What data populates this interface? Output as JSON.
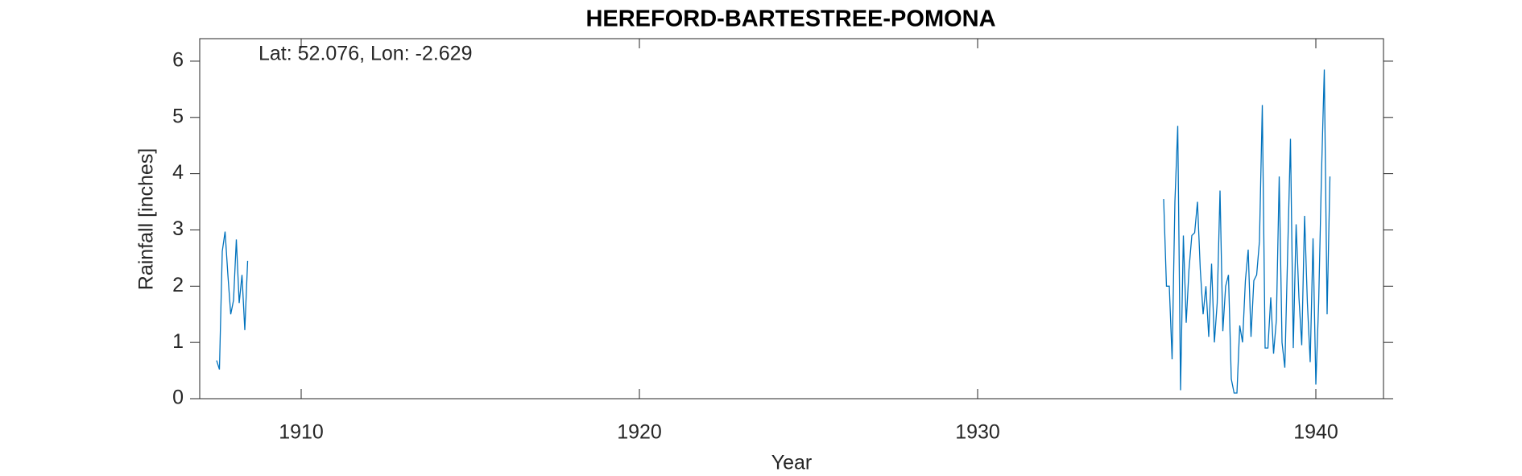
{
  "chart_data": {
    "type": "line",
    "title": "HEREFORD-BARTESTREE-POMONA",
    "annotation": "Lat: 52.076, Lon: -2.629",
    "xlabel": "Year",
    "ylabel": "Rainfall [inches]",
    "xlim": [
      1907,
      1942
    ],
    "xticks": [
      1910,
      1920,
      1930,
      1940
    ],
    "ylim": [
      0,
      6.4
    ],
    "yticks": [
      0,
      1,
      2,
      3,
      4,
      5,
      6
    ],
    "x": [
      1907.5,
      1907.583,
      1907.667,
      1907.75,
      1907.833,
      1907.917,
      1908,
      1908.083,
      1908.167,
      1908.25,
      1908.333,
      1908.417,
      1908.5,
      1935.5,
      1935.583,
      1935.667,
      1935.75,
      1935.833,
      1935.917,
      1936,
      1936.083,
      1936.167,
      1936.25,
      1936.333,
      1936.417,
      1936.5,
      1936.583,
      1936.667,
      1936.75,
      1936.833,
      1936.917,
      1937,
      1937.083,
      1937.167,
      1937.25,
      1937.333,
      1937.417,
      1937.5,
      1937.583,
      1937.667,
      1937.75,
      1937.833,
      1937.917,
      1938,
      1938.083,
      1938.167,
      1938.25,
      1938.333,
      1938.417,
      1938.5,
      1938.583,
      1938.667,
      1938.75,
      1938.833,
      1938.917,
      1939,
      1939.083,
      1939.167,
      1939.25,
      1939.333,
      1939.417,
      1939.5,
      1939.583,
      1939.667,
      1939.75,
      1939.833,
      1939.917,
      1940,
      1940.083,
      1940.167,
      1940.25,
      1940.333,
      1940.417
    ],
    "series": [
      {
        "color": "#0072bd",
        "values": [
          0.68,
          0.52,
          2.62,
          2.97,
          2.2,
          1.5,
          1.75,
          2.83,
          1.7,
          2.2,
          1.22,
          2.45,
          null,
          3.55,
          2.0,
          2.0,
          0.7,
          3.5,
          4.85,
          0.15,
          2.9,
          1.35,
          2.3,
          2.9,
          2.95,
          3.5,
          2.3,
          1.5,
          2.0,
          1.1,
          2.4,
          1.0,
          1.7,
          3.7,
          1.2,
          2.0,
          2.2,
          0.35,
          0.1,
          0.1,
          1.3,
          1.0,
          2.1,
          2.65,
          1.1,
          2.1,
          2.2,
          2.8,
          5.22,
          0.9,
          0.9,
          1.8,
          0.8,
          1.4,
          3.95,
          1.0,
          0.55,
          2.6,
          4.62,
          0.9,
          3.1,
          1.8,
          0.95,
          3.25,
          1.7,
          0.65,
          2.85,
          0.25,
          1.7,
          4.0,
          5.85,
          1.5,
          3.95
        ]
      }
    ]
  }
}
